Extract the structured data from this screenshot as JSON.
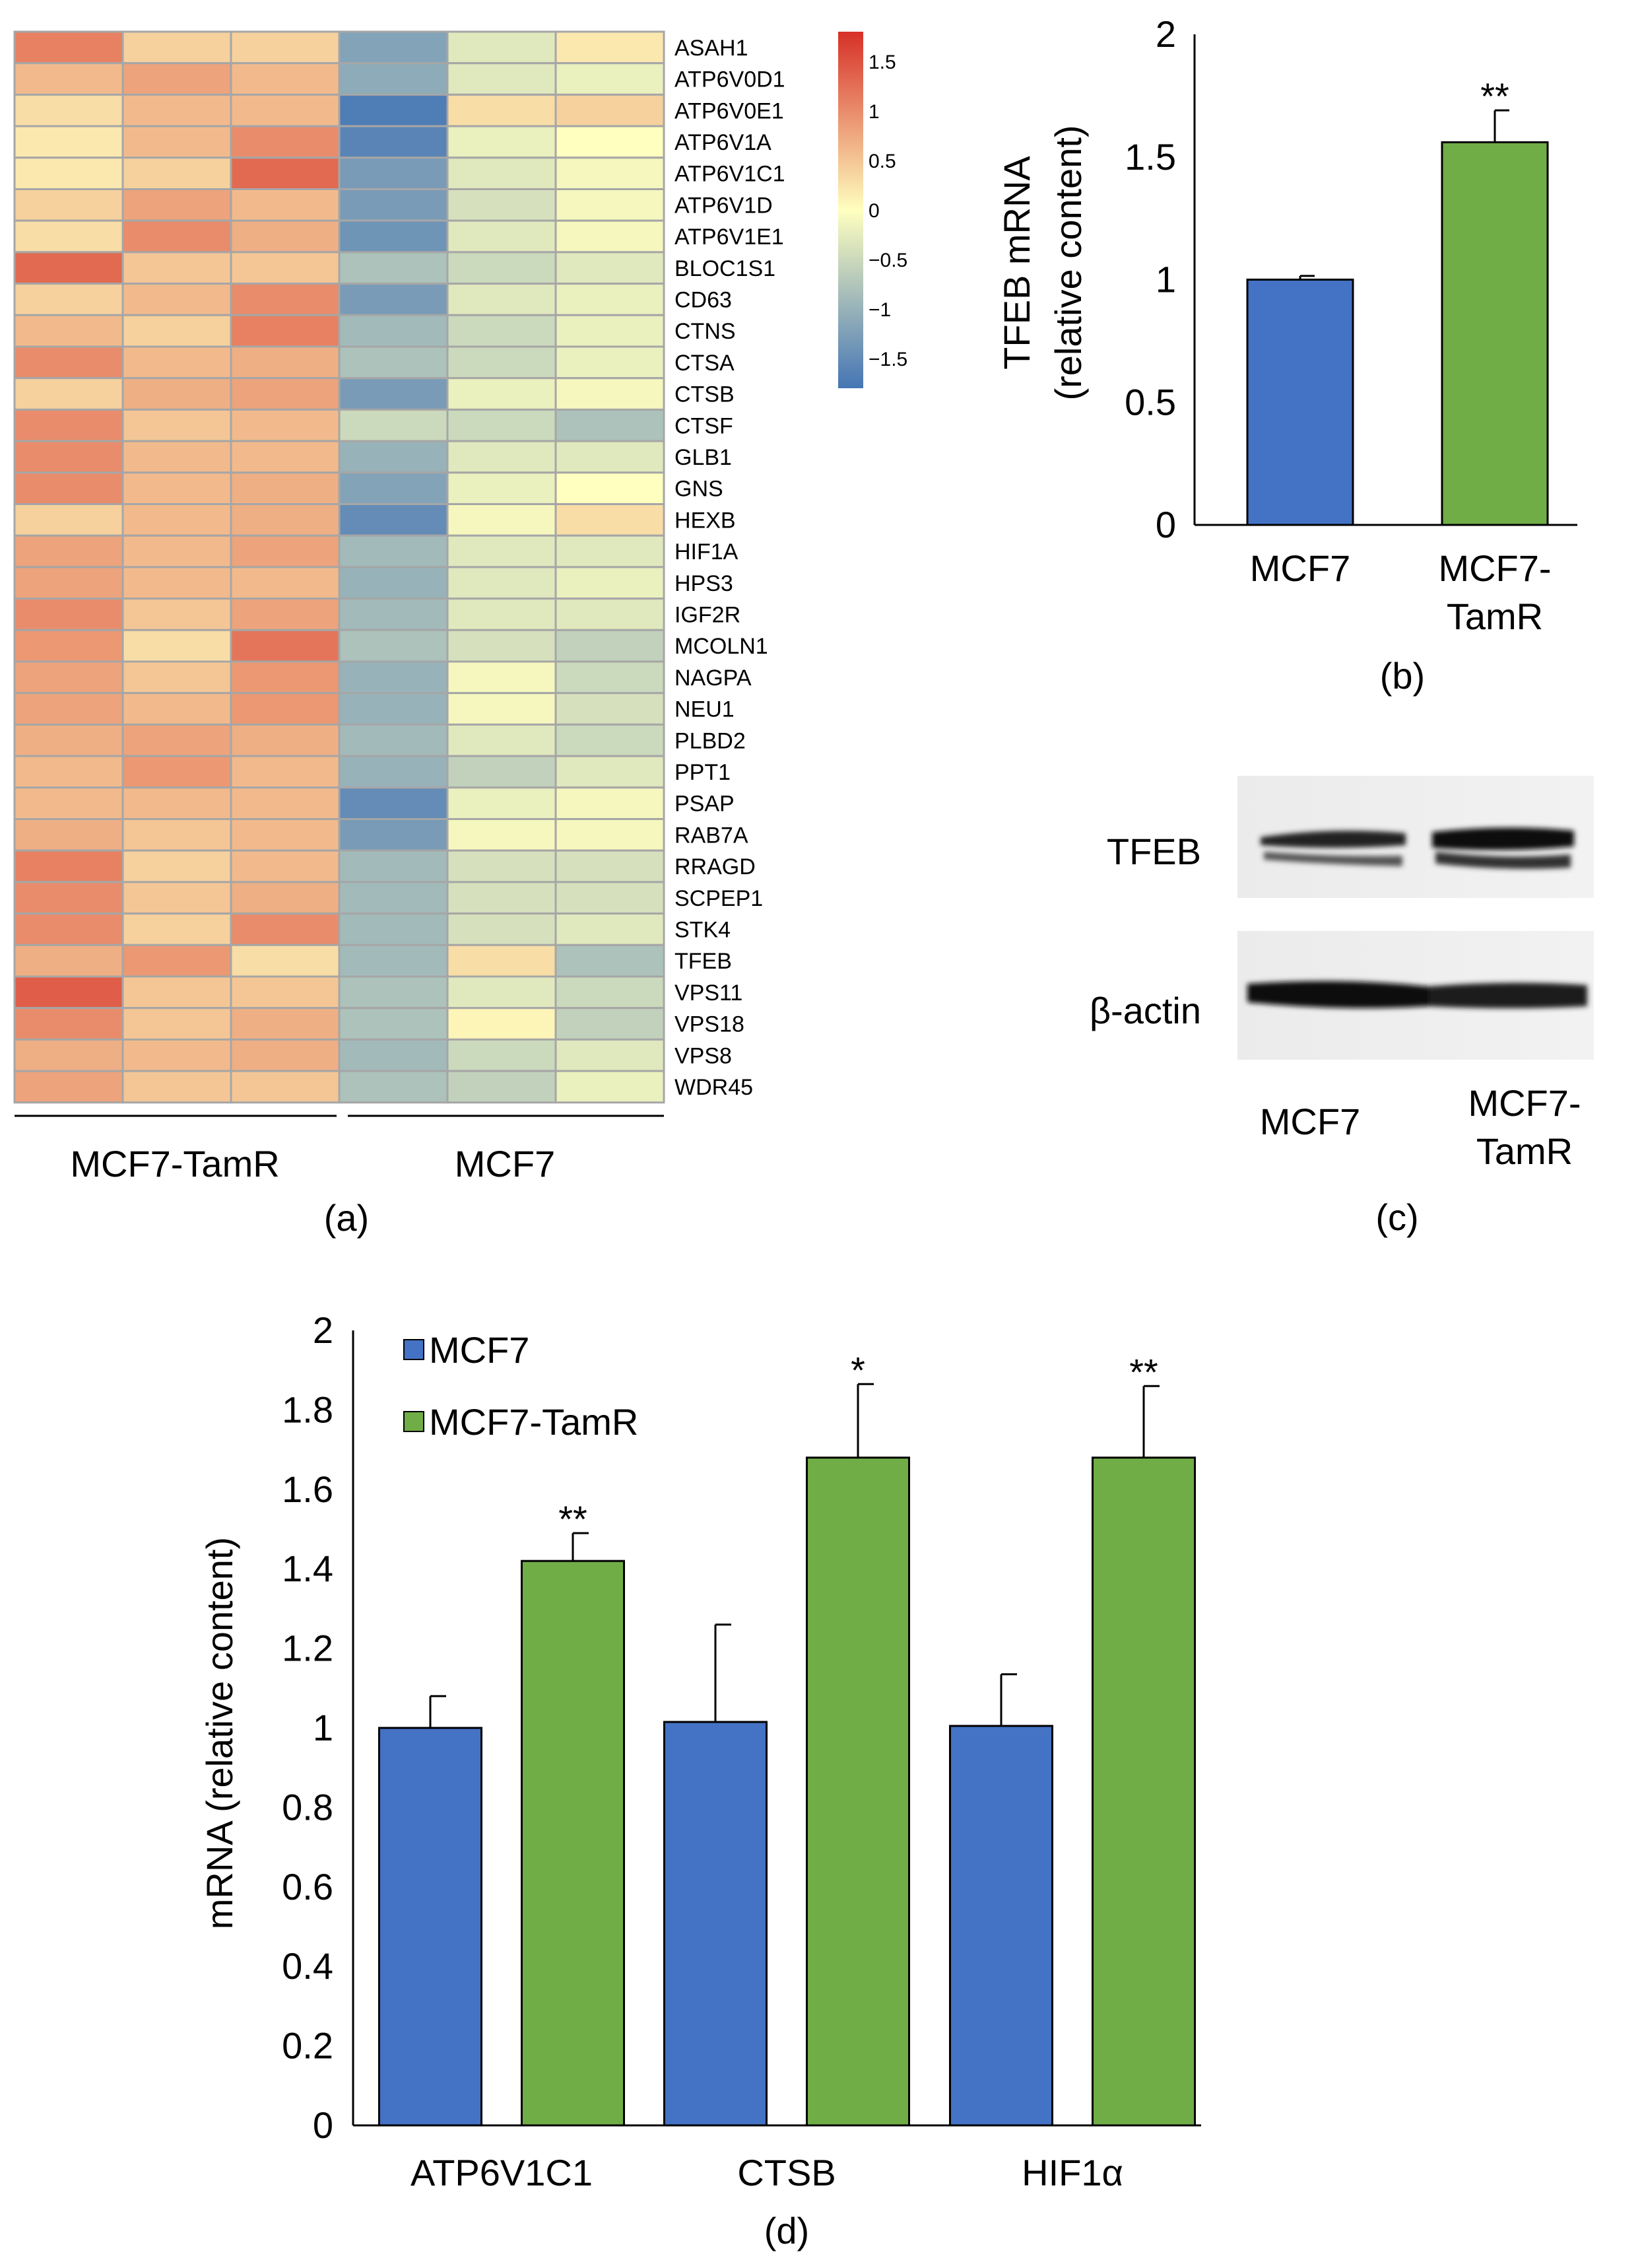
{
  "chart_data": [
    {
      "panel": "(a)",
      "type": "heatmap",
      "genes": [
        "ASAH1",
        "ATP6V0D1",
        "ATP6V0E1",
        "ATP6V1A",
        "ATP6V1C1",
        "ATP6V1D",
        "ATP6V1E1",
        "BLOC1S1",
        "CD63",
        "CTNS",
        "CTSA",
        "CTSB",
        "CTSF",
        "GLB1",
        "GNS",
        "HEXB",
        "HIF1A",
        "HPS3",
        "IGF2R",
        "MCOLN1",
        "NAGPA",
        "NEU1",
        "PLBD2",
        "PPT1",
        "PSAP",
        "RAB7A",
        "RRAGD",
        "SCPEP1",
        "STK4",
        "TFEB",
        "VPS11",
        "VPS18",
        "VPS8",
        "WDR45"
      ],
      "groups": [
        "MCF7-TamR",
        "MCF7"
      ],
      "columns_per_group": 3,
      "values": [
        [
          1.1,
          0.4,
          0.4,
          -1.2,
          -0.3,
          0.2
        ],
        [
          0.6,
          0.8,
          0.6,
          -1.1,
          -0.3,
          -0.2
        ],
        [
          0.3,
          0.6,
          0.6,
          -1.7,
          0.3,
          0.4
        ],
        [
          0.2,
          0.6,
          1.0,
          -1.6,
          -0.2,
          0.0
        ],
        [
          0.2,
          0.4,
          1.3,
          -1.3,
          -0.3,
          -0.1
        ],
        [
          0.4,
          0.8,
          0.6,
          -1.3,
          -0.4,
          -0.1
        ],
        [
          0.3,
          1.0,
          0.7,
          -1.4,
          -0.3,
          -0.1
        ],
        [
          1.3,
          0.5,
          0.5,
          -0.8,
          -0.5,
          -0.3
        ],
        [
          0.4,
          0.6,
          1.0,
          -1.3,
          -0.3,
          -0.2
        ],
        [
          0.6,
          0.4,
          1.1,
          -0.9,
          -0.5,
          -0.2
        ],
        [
          1.0,
          0.6,
          0.7,
          -0.8,
          -0.5,
          -0.2
        ],
        [
          0.4,
          0.7,
          0.8,
          -1.3,
          -0.2,
          -0.1
        ],
        [
          1.0,
          0.5,
          0.6,
          -0.5,
          -0.5,
          -0.8
        ],
        [
          1.0,
          0.6,
          0.6,
          -1.0,
          -0.3,
          -0.3
        ],
        [
          1.0,
          0.6,
          0.7,
          -1.2,
          -0.2,
          0.0
        ],
        [
          0.4,
          0.6,
          0.7,
          -1.5,
          -0.1,
          0.3
        ],
        [
          0.8,
          0.6,
          0.8,
          -0.9,
          -0.3,
          -0.3
        ],
        [
          0.8,
          0.6,
          0.6,
          -1.0,
          -0.3,
          -0.2
        ],
        [
          1.0,
          0.5,
          0.8,
          -0.9,
          -0.3,
          -0.3
        ],
        [
          0.9,
          0.3,
          1.2,
          -0.8,
          -0.4,
          -0.6
        ],
        [
          0.8,
          0.5,
          0.9,
          -1.0,
          -0.1,
          -0.5
        ],
        [
          0.8,
          0.6,
          0.9,
          -1.0,
          -0.1,
          -0.4
        ],
        [
          0.7,
          0.8,
          0.7,
          -0.9,
          -0.3,
          -0.5
        ],
        [
          0.6,
          0.9,
          0.6,
          -1.0,
          -0.6,
          -0.3
        ],
        [
          0.6,
          0.6,
          0.6,
          -1.5,
          -0.2,
          -0.1
        ],
        [
          0.7,
          0.5,
          0.6,
          -1.3,
          -0.1,
          -0.1
        ],
        [
          1.1,
          0.4,
          0.6,
          -0.9,
          -0.4,
          -0.4
        ],
        [
          1.0,
          0.5,
          0.7,
          -0.9,
          -0.4,
          -0.4
        ],
        [
          1.0,
          0.4,
          1.0,
          -0.9,
          -0.4,
          -0.3
        ],
        [
          0.7,
          0.9,
          0.3,
          -0.9,
          0.3,
          -0.8
        ],
        [
          1.4,
          0.5,
          0.5,
          -0.8,
          -0.3,
          -0.5
        ],
        [
          1.0,
          0.5,
          0.7,
          -0.8,
          0.1,
          -0.6
        ],
        [
          0.7,
          0.6,
          0.7,
          -0.9,
          -0.5,
          -0.3
        ],
        [
          0.8,
          0.5,
          0.5,
          -0.8,
          -0.6,
          -0.2
        ]
      ],
      "colorbar_ticks": [
        "1.5",
        "1",
        "0.5",
        "0",
        "−0.5",
        "−1",
        "−1.5"
      ],
      "colorbar_values": [
        1.5,
        1,
        0.5,
        0,
        -0.5,
        -1,
        -1.5
      ],
      "color_range": [
        -1.8,
        1.8
      ],
      "colors": {
        "low": "#4575b4",
        "mid": "#ffffbf",
        "high": "#d73027"
      },
      "caption": "(a)"
    },
    {
      "panel": "(b)",
      "type": "bar",
      "categories": [
        "MCF7",
        "MCF7-TamR"
      ],
      "category_lines": [
        [
          "MCF7"
        ],
        [
          "MCF7-",
          "TamR"
        ]
      ],
      "values": [
        1.0,
        1.56
      ],
      "errors": [
        0.015,
        0.13
      ],
      "significance": [
        "",
        "**"
      ],
      "colors": [
        "#4472c4",
        "#70ad47"
      ],
      "ylabel_lines": [
        "TFEB mRNA",
        "(relative content)"
      ],
      "ylim": [
        0,
        2
      ],
      "yticks": [
        0,
        0.5,
        1,
        1.5,
        2
      ],
      "ytick_labels": [
        "0",
        "0.5",
        "1",
        "1.5",
        "2"
      ],
      "caption": "(b)"
    },
    {
      "panel": "(c)",
      "type": "western-blot",
      "row_labels": [
        "TFEB",
        "β-actin"
      ],
      "lane_labels": [
        [
          "MCF7"
        ],
        [
          "MCF7-",
          "TamR"
        ]
      ],
      "caption": "(c)"
    },
    {
      "panel": "(d)",
      "type": "bar",
      "categories": [
        "ATP6V1C1",
        "CTSB",
        "HIF1α"
      ],
      "series": [
        {
          "name": "MCF7",
          "color": "#4472c4",
          "values": [
            1.0,
            1.015,
            1.005
          ],
          "errors": [
            0.08,
            0.245,
            0.13
          ],
          "significance": [
            "",
            "",
            ""
          ]
        },
        {
          "name": "MCF7-TamR",
          "color": "#70ad47",
          "values": [
            1.42,
            1.68,
            1.68
          ],
          "errors": [
            0.07,
            0.185,
            0.18
          ],
          "significance": [
            "**",
            "*",
            "**"
          ]
        }
      ],
      "ylabel": "mRNA (relative content)",
      "ylim": [
        0,
        2
      ],
      "yticks": [
        0,
        0.2,
        0.4,
        0.6,
        0.8,
        1,
        1.2,
        1.4,
        1.6,
        1.8,
        2
      ],
      "ytick_labels": [
        "0",
        "0.2",
        "0.4",
        "0.6",
        "0.8",
        "1",
        "1.2",
        "1.4",
        "1.6",
        "1.8",
        "2"
      ],
      "legend_position": "top-left",
      "caption": "(d)"
    }
  ]
}
